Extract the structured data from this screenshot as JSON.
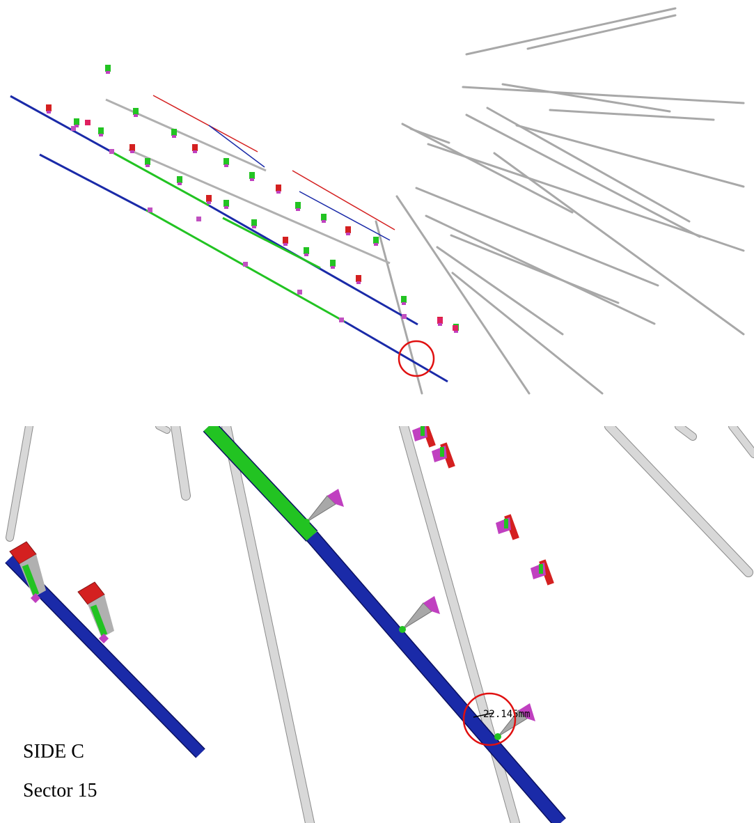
{
  "labels": {
    "side": "SIDE C",
    "sector": "Sector 15",
    "measurement": "22.145mm"
  },
  "colors": {
    "beam_blue": "#1a2aa8",
    "beam_green": "#22c322",
    "rod_gray": "#b8b8b8",
    "connector_red": "#d42020",
    "connector_magenta": "#c040c0",
    "highlight_circle": "#e01010"
  },
  "icons": {
    "highlight": "red-circle-highlight",
    "dimension": "dimension-arrow-icon"
  }
}
